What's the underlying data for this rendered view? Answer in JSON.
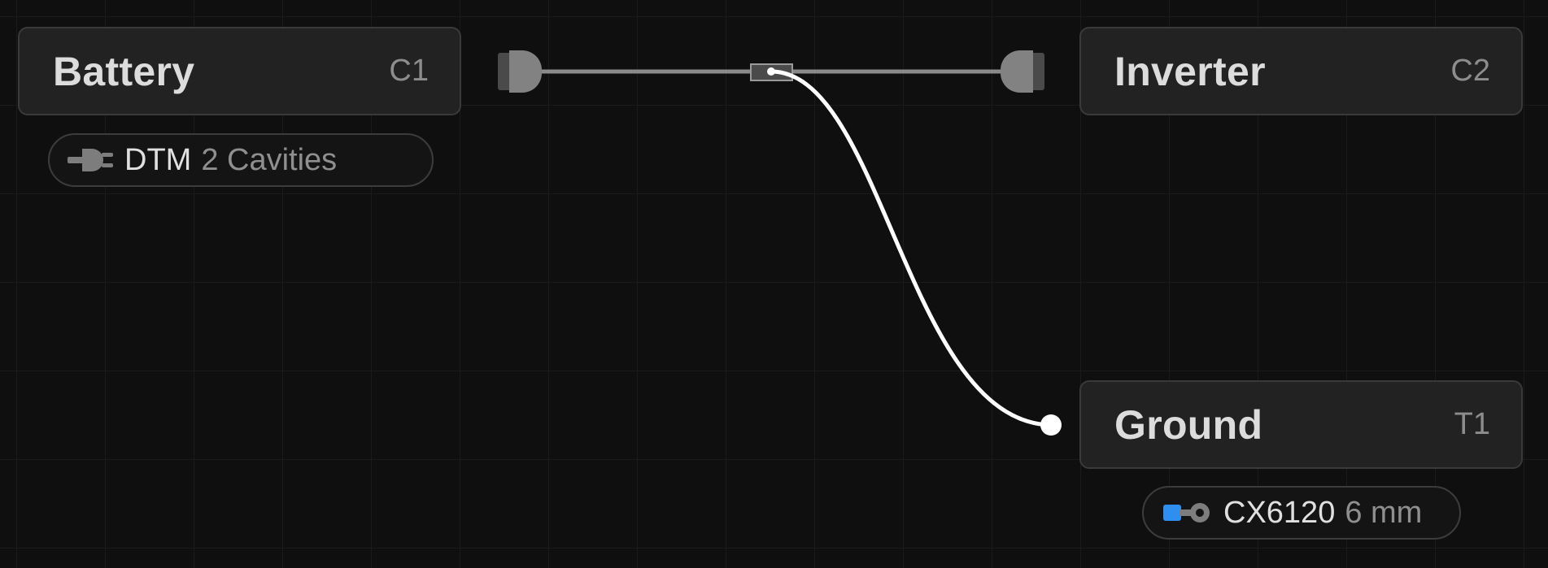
{
  "nodes": {
    "battery": {
      "title": "Battery",
      "ref": "C1"
    },
    "inverter": {
      "title": "Inverter",
      "ref": "C2"
    },
    "ground": {
      "title": "Ground",
      "ref": "T1"
    }
  },
  "battery_connector": {
    "icon": "plug-icon",
    "part": "DTM",
    "detail": "2 Cavities"
  },
  "ground_terminal": {
    "icon": "ring-terminal-icon",
    "part": "CX6120",
    "detail": "6 mm"
  },
  "colors": {
    "background": "#0f0f0f",
    "node_fill": "#222222",
    "node_border": "#3a3a3a",
    "wire_gray": "#8a8a8a",
    "wire_white": "#ffffff",
    "terminal_blue": "#2f8ff0"
  }
}
